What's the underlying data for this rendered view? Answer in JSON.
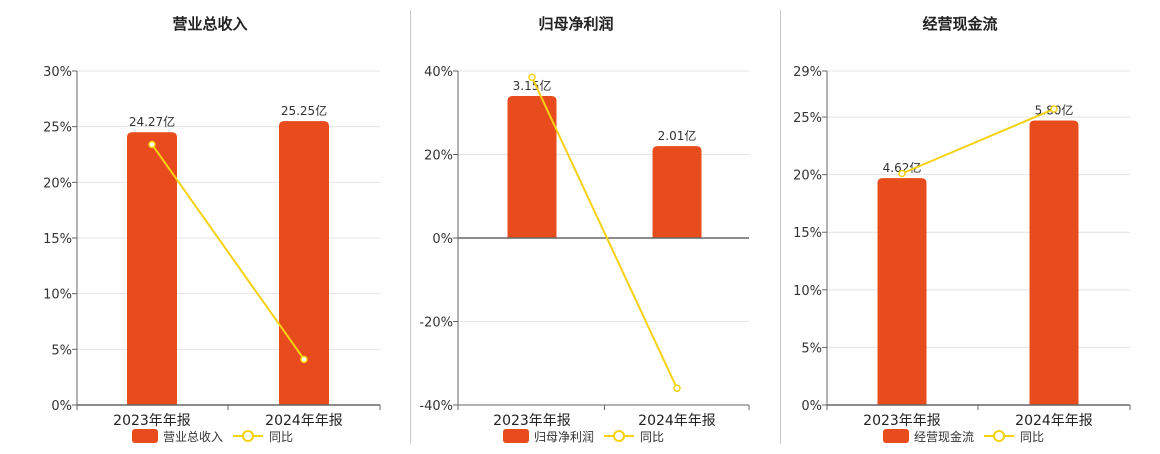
{
  "colors": {
    "bar": "#E84C1C",
    "line": "#F4D212",
    "axis": "#666666",
    "grid": "#e4e4e4"
  },
  "chart_data": [
    {
      "type": "bar",
      "title": "营业总收入",
      "categories": [
        "2023年年报",
        "2024年年报"
      ],
      "ylim": [
        0,
        30
      ],
      "yticks": [
        0,
        5,
        10,
        15,
        20,
        25,
        30
      ],
      "tick_labels": [
        "0%",
        "5%",
        "10%",
        "15%",
        "20%",
        "25%",
        "30%"
      ],
      "series": [
        {
          "name": "营业总收入",
          "type": "bar",
          "values": [
            24.5,
            25.5
          ],
          "labels": [
            "24.27亿",
            "25.25亿"
          ]
        },
        {
          "name": "同比",
          "type": "line",
          "values": [
            23.4,
            4.1
          ]
        }
      ],
      "legend": "bottom"
    },
    {
      "type": "bar",
      "title": "归母净利润",
      "categories": [
        "2023年年报",
        "2024年年报"
      ],
      "ylim": [
        -40,
        40
      ],
      "yticks": [
        -40,
        -20,
        0,
        20,
        40
      ],
      "tick_labels": [
        "-40%",
        "-20%",
        "0%",
        "20%",
        "40%"
      ],
      "series": [
        {
          "name": "归母净利润",
          "type": "bar",
          "values": [
            34,
            22
          ],
          "labels": [
            "3.15亿",
            "2.01亿"
          ]
        },
        {
          "name": "同比",
          "type": "line",
          "values": [
            38.5,
            -36
          ]
        }
      ],
      "legend": "bottom"
    },
    {
      "type": "bar",
      "title": "经营现金流",
      "categories": [
        "2023年年报",
        "2024年年报"
      ],
      "ylim": [
        0,
        29
      ],
      "yticks": [
        0,
        5,
        10,
        15,
        20,
        25,
        29
      ],
      "tick_labels": [
        "0%",
        "5%",
        "10%",
        "15%",
        "20%",
        "25%",
        "29%"
      ],
      "series": [
        {
          "name": "经营现金流",
          "type": "bar",
          "values": [
            19.7,
            24.7
          ],
          "labels": [
            "4.62亿",
            "5.80亿"
          ]
        },
        {
          "name": "同比",
          "type": "line",
          "values": [
            20.1,
            25.7
          ]
        }
      ],
      "legend": "bottom"
    }
  ]
}
